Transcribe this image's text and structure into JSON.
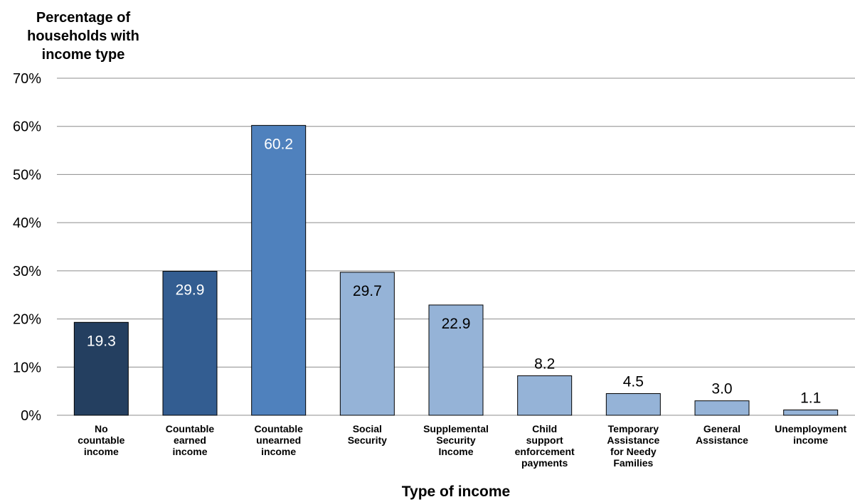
{
  "chart_data": {
    "type": "bar",
    "ylabel": [
      "Percentage of",
      "households with",
      "income type"
    ],
    "xlabel": "Type of income",
    "ylim": [
      0,
      70
    ],
    "yticks": [
      0,
      10,
      20,
      30,
      40,
      50,
      60,
      70
    ],
    "ytick_labels": [
      "0%",
      "10%",
      "20%",
      "30%",
      "40%",
      "50%",
      "60%",
      "70%"
    ],
    "grid": true,
    "categories": [
      [
        "No",
        "countable",
        "income"
      ],
      [
        "Countable",
        "earned",
        "income"
      ],
      [
        "Countable",
        "unearned",
        "income"
      ],
      [
        "Social",
        "Security"
      ],
      [
        "Supplemental",
        "Security",
        "Income"
      ],
      [
        "Child",
        "support",
        "enforcement",
        "payments"
      ],
      [
        "Temporary",
        "Assistance",
        "for Needy",
        "Families"
      ],
      [
        "General",
        "Assistance"
      ],
      [
        "Unemployment",
        "income"
      ]
    ],
    "values": [
      19.3,
      29.9,
      60.2,
      29.7,
      22.9,
      8.2,
      4.5,
      3.0,
      1.1
    ],
    "data_labels": [
      "19.3",
      "29.9",
      "60.2",
      "29.7",
      "22.9",
      "8.2",
      "4.5",
      "3.0",
      "1.1"
    ],
    "bar_colors": [
      "#243f60",
      "#335d91",
      "#4f81bd",
      "#95b3d7",
      "#95b3d7",
      "#95b3d7",
      "#95b3d7",
      "#95b3d7",
      "#95b3d7"
    ],
    "label_colors": [
      "#ffffff",
      "#ffffff",
      "#ffffff",
      "#000000",
      "#000000",
      "#000000",
      "#000000",
      "#000000",
      "#000000"
    ]
  }
}
